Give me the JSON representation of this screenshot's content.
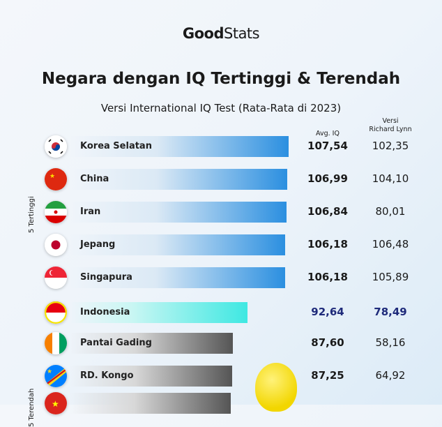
{
  "logo": {
    "text_bold": "Good",
    "text_light": "Stats"
  },
  "title": "Negara dengan IQ Tertinggi & Terendah",
  "subtitle": "Versi International IQ Test (Rata-Rata di 2023)",
  "columns": {
    "avg": "Avg. IQ",
    "lynn_line1": "Versi",
    "lynn_line2": "Richard Lynn"
  },
  "group_labels": {
    "top": "5 Tertinggi",
    "bottom": "5 Terendah"
  },
  "colors": {
    "top_bar": "#2b8fe0",
    "highlight_bar": "#3ee8e2",
    "bottom_bar": "#555555",
    "highlight_text": "#1e2a7a"
  },
  "chart_data": {
    "type": "bar",
    "orientation": "horizontal",
    "categories": [
      "Korea Selatan",
      "China",
      "Iran",
      "Jepang",
      "Singapura",
      "Indonesia",
      "Pantai Gading",
      "RD. Kongo",
      ""
    ],
    "series": [
      {
        "name": "Avg. IQ",
        "values": [
          107.54,
          106.99,
          106.84,
          106.18,
          106.18,
          92.64,
          87.6,
          87.25,
          null
        ]
      },
      {
        "name": "Versi Richard Lynn",
        "values": [
          102.35,
          104.1,
          80.01,
          106.48,
          105.89,
          78.49,
          58.16,
          64.92,
          null
        ]
      }
    ],
    "display_avg": [
      "107,54",
      "106,99",
      "106,84",
      "106,18",
      "106,18",
      "92,64",
      "87,60",
      "87,25",
      ""
    ],
    "display_lynn": [
      "102,35",
      "104,10",
      "80,01",
      "106,48",
      "105,89",
      "78,49",
      "58,16",
      "64,92",
      ""
    ],
    "groups": [
      "top",
      "top",
      "top",
      "top",
      "top",
      "highlight",
      "bottom",
      "bottom",
      "bottom"
    ],
    "flags": [
      "kr",
      "cn",
      "ir",
      "jp",
      "sg",
      "id",
      "ci",
      "cd",
      "vn"
    ]
  }
}
